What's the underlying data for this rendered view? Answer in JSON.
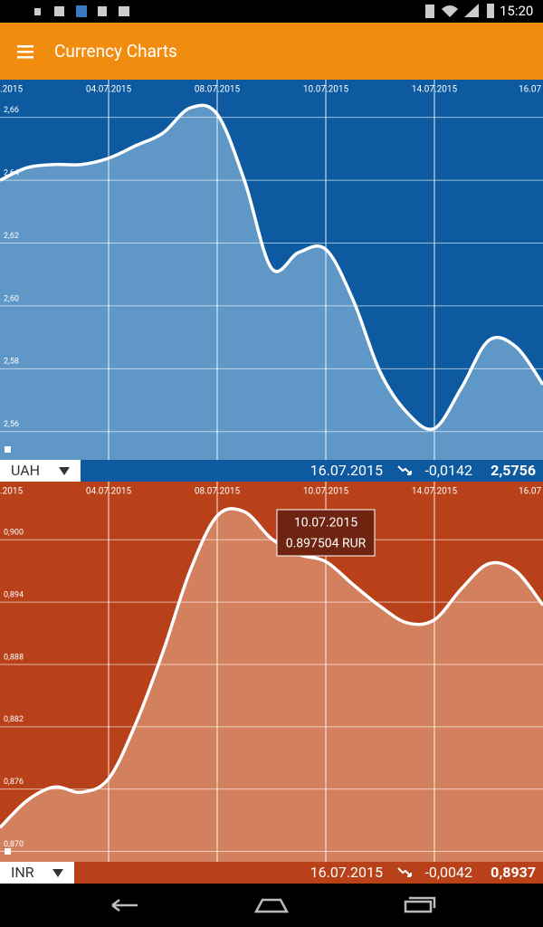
{
  "status_bar": {
    "time": "15:20"
  },
  "app_bar": {
    "title": "Currency Charts"
  },
  "chart_data": [
    {
      "type": "area",
      "currency": "UAH",
      "date": "16.07.2015",
      "change": "-0,0142",
      "last": "2,5756",
      "x_labels": [
        ".2015",
        "04.07.2015",
        "08.07.2015",
        "10.07.2015",
        "14.07.2015",
        "16.07"
      ],
      "values": [
        2.64,
        2.644,
        2.645,
        2.645,
        2.647,
        2.651,
        2.655,
        2.663,
        2.661,
        2.64,
        2.612,
        2.617,
        2.618,
        2.602,
        2.579,
        2.566,
        2.561,
        2.574,
        2.589,
        2.587,
        2.575
      ],
      "ylim": [
        2.551,
        2.672
      ],
      "yticks": [
        {
          "value": 2.66,
          "label": "2,66"
        },
        {
          "value": 2.64,
          "label": "2,64"
        },
        {
          "value": 2.62,
          "label": "2,62"
        },
        {
          "value": 2.6,
          "label": "2,60"
        },
        {
          "value": 2.58,
          "label": "2,58"
        },
        {
          "value": 2.56,
          "label": "2,56"
        }
      ],
      "background": "#0d5aa0",
      "fill": "#5f97c6",
      "color": "#ffffff"
    },
    {
      "type": "area",
      "currency": "INR",
      "date": "16.07.2015",
      "change": "-0,0042",
      "last": "0,8937",
      "x_labels": [
        ".2015",
        "04.07.2015",
        "08.07.2015",
        "10.07.2015",
        "14.07.2015",
        "16.07"
      ],
      "values": [
        0.8723,
        0.8749,
        0.8762,
        0.8757,
        0.877,
        0.8823,
        0.8892,
        0.897,
        0.9023,
        0.9027,
        0.9001,
        0.8986,
        0.8979,
        0.8957,
        0.8936,
        0.892,
        0.8923,
        0.8953,
        0.8977,
        0.897,
        0.8937
      ],
      "ylim": [
        0.869,
        0.9056
      ],
      "yticks": [
        {
          "value": 0.9,
          "label": "0,900"
        },
        {
          "value": 0.894,
          "label": "0,894"
        },
        {
          "value": 0.888,
          "label": "0,888"
        },
        {
          "value": 0.882,
          "label": "0,882"
        },
        {
          "value": 0.876,
          "label": "0,876"
        },
        {
          "value": 0.87,
          "label": "0,870"
        }
      ],
      "background": "#b8411a",
      "fill": "#d3805f",
      "color": "#ffffff",
      "tooltip": {
        "date": "10.07.2015",
        "value": "0.897504 RUR"
      }
    }
  ]
}
